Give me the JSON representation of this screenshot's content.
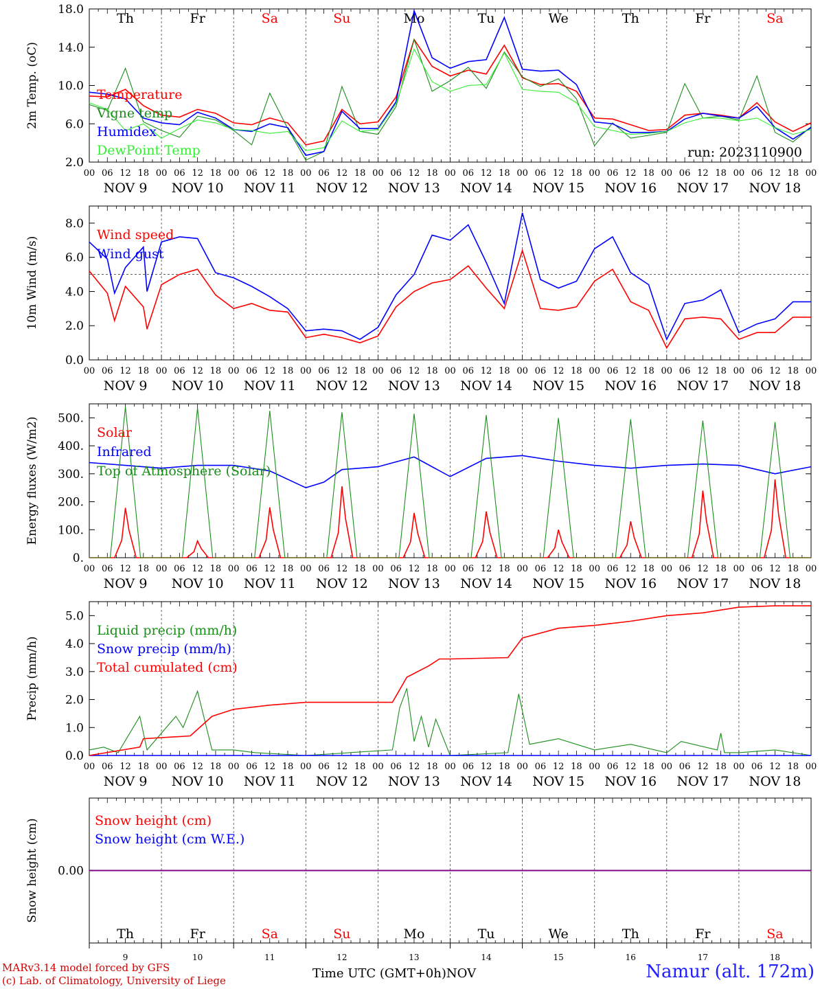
{
  "footer": {
    "model": "MARv3.14 model forced by GFS",
    "lab": "(c) Lab. of Climatology, University of Liege",
    "time_axis": "Time UTC (GMT+0h)",
    "month": "NOV",
    "station": "Namur (alt. 172m)"
  },
  "colors": {
    "red": "#ff0000",
    "green": "#1a8c1a",
    "blue": "#0000ff",
    "lightgreen": "#33ee33",
    "purple": "#800080",
    "weekend": "#ff0000",
    "weekday": "#000000"
  },
  "chart_data": [
    {
      "id": "temperature",
      "type": "line",
      "ylabel": "2m Temp. (oC)",
      "ylim": [
        2,
        18
      ],
      "yticks": [
        2.0,
        6.0,
        10.0,
        14.0,
        18.0
      ],
      "ytick_labels": [
        "2.0",
        "6.0",
        "10.0",
        "14.0",
        "18.0"
      ],
      "x_unit": "days since Nov 9 00 UTC",
      "xlim": [
        0,
        10
      ],
      "weekdays": [
        "Th",
        "Fr",
        "Sa",
        "Su",
        "Mo",
        "Tu",
        "We",
        "Th",
        "Fr",
        "Sa"
      ],
      "weekend_days": [
        "Sa",
        "Su"
      ],
      "hour_ticks": [
        "00",
        "06",
        "12",
        "18"
      ],
      "date_labels": [
        "NOV  9",
        "NOV 10",
        "NOV 11",
        "NOV 12",
        "NOV 13",
        "NOV 14",
        "NOV 15",
        "NOV 16",
        "NOV 17",
        "NOV 18"
      ],
      "annotation": "run: 2023110900",
      "series": [
        {
          "name": "Temperature",
          "color": "red",
          "x": [
            0,
            0.25,
            0.5,
            0.75,
            1,
            1.25,
            1.5,
            1.75,
            2,
            2.25,
            2.5,
            2.75,
            3,
            3.25,
            3.5,
            3.75,
            4,
            4.25,
            4.5,
            4.75,
            5,
            5.25,
            5.5,
            5.75,
            6,
            6.25,
            6.5,
            6.75,
            7,
            7.25,
            7.5,
            7.75,
            8,
            8.25,
            8.5,
            8.75,
            9,
            9.25,
            9.5,
            9.75,
            10
          ],
          "values": [
            8.9,
            8.8,
            9.6,
            7.9,
            6.9,
            6.7,
            7.5,
            7.1,
            6.1,
            5.9,
            6.6,
            6.1,
            3.8,
            4.2,
            7.5,
            6.0,
            6.2,
            8.8,
            14.8,
            12.0,
            11.0,
            11.6,
            11.2,
            14.2,
            10.8,
            10.1,
            10.2,
            9.4,
            6.6,
            6.5,
            5.9,
            5.3,
            5.4,
            6.9,
            7.1,
            6.9,
            6.6,
            8.2,
            6.2,
            5.2,
            6.1
          ]
        },
        {
          "name": "Vigne temp",
          "color": "green",
          "x": [
            0,
            0.25,
            0.5,
            0.75,
            1,
            1.25,
            1.5,
            1.75,
            2,
            2.25,
            2.5,
            2.75,
            3,
            3.25,
            3.5,
            3.75,
            4,
            4.25,
            4.5,
            4.75,
            5,
            5.25,
            5.5,
            5.75,
            6,
            6.25,
            6.5,
            6.75,
            7,
            7.25,
            7.5,
            7.75,
            8,
            8.25,
            8.5,
            8.75,
            9,
            9.25,
            9.5,
            9.75,
            10
          ],
          "values": [
            8.0,
            7.4,
            11.8,
            6.2,
            5.3,
            4.6,
            6.8,
            6.4,
            5.3,
            3.8,
            9.2,
            5.5,
            2.2,
            3.1,
            9.9,
            5.2,
            4.9,
            7.8,
            14.8,
            9.4,
            10.5,
            11.9,
            9.7,
            13.5,
            10.9,
            9.9,
            10.7,
            8.6,
            3.7,
            6.1,
            4.5,
            4.8,
            5.1,
            10.2,
            6.6,
            6.8,
            6.4,
            11.0,
            5.1,
            4.1,
            5.7
          ]
        },
        {
          "name": "Humidex",
          "color": "blue",
          "x": [
            0,
            0.25,
            0.5,
            0.75,
            1,
            1.25,
            1.5,
            1.75,
            2,
            2.25,
            2.5,
            2.75,
            3,
            3.25,
            3.5,
            3.75,
            4,
            4.25,
            4.5,
            4.75,
            5,
            5.25,
            5.5,
            5.75,
            6,
            6.25,
            6.5,
            6.75,
            7,
            7.25,
            7.5,
            7.75,
            8,
            8.25,
            8.5,
            8.75,
            9,
            9.25,
            9.5,
            9.75,
            10
          ],
          "values": [
            9.3,
            9.1,
            8.6,
            6.6,
            6.1,
            5.9,
            7.2,
            6.6,
            5.4,
            5.2,
            6.0,
            5.6,
            2.7,
            3.1,
            7.3,
            5.5,
            5.5,
            8.3,
            17.8,
            12.9,
            11.8,
            12.5,
            12.7,
            17.1,
            11.7,
            11.5,
            11.6,
            10.1,
            6.2,
            6.0,
            5.1,
            5.1,
            5.2,
            6.5,
            7.1,
            6.8,
            6.6,
            7.8,
            5.6,
            4.4,
            5.6
          ]
        },
        {
          "name": "DewPoint Temp",
          "color": "lightgreen",
          "x": [
            0,
            0.25,
            0.5,
            0.75,
            1,
            1.25,
            1.5,
            1.75,
            2,
            2.25,
            2.5,
            2.75,
            3,
            3.25,
            3.5,
            3.75,
            4,
            4.25,
            4.5,
            4.75,
            5,
            5.25,
            5.5,
            5.75,
            6,
            6.25,
            6.5,
            6.75,
            7,
            7.25,
            7.5,
            7.75,
            8,
            8.25,
            8.5,
            8.75,
            9,
            9.25,
            9.5,
            9.75,
            10
          ],
          "values": [
            8.2,
            7.5,
            5.3,
            6.0,
            4.5,
            5.5,
            6.4,
            6.1,
            5.4,
            5.3,
            5.0,
            5.2,
            3.2,
            3.5,
            6.3,
            5.2,
            5.4,
            8.1,
            13.8,
            10.4,
            9.4,
            10.0,
            10.1,
            13.4,
            9.6,
            9.4,
            9.3,
            8.2,
            5.7,
            5.3,
            4.9,
            5.0,
            5.2,
            6.1,
            6.6,
            6.6,
            6.3,
            6.6,
            5.6,
            4.9,
            5.4
          ]
        }
      ]
    },
    {
      "id": "wind",
      "type": "line",
      "ylabel": "10m Wind (m/s)",
      "ylim": [
        0,
        9
      ],
      "yticks": [
        0,
        2,
        4,
        6,
        8
      ],
      "ytick_labels": [
        "0.0",
        "2.0",
        "4.0",
        "6.0",
        "8.0"
      ],
      "reference_line": 5,
      "xlim": [
        0,
        10
      ],
      "date_labels": [
        "NOV  9",
        "NOV 10",
        "NOV 11",
        "NOV 12",
        "NOV 13",
        "NOV 14",
        "NOV 15",
        "NOV 16",
        "NOV 17",
        "NOV 18"
      ],
      "hour_ticks": [
        "00",
        "06",
        "12",
        "18"
      ],
      "series": [
        {
          "name": "Wind speed",
          "color": "red",
          "x": [
            0,
            0.25,
            0.35,
            0.5,
            0.75,
            0.8,
            1,
            1.25,
            1.5,
            1.75,
            2,
            2.25,
            2.5,
            2.75,
            3,
            3.25,
            3.5,
            3.75,
            4,
            4.25,
            4.5,
            4.75,
            5,
            5.25,
            5.5,
            5.75,
            6,
            6.25,
            6.5,
            6.75,
            7,
            7.25,
            7.5,
            7.75,
            8,
            8.25,
            8.5,
            8.75,
            9,
            9.25,
            9.5,
            9.75,
            10
          ],
          "values": [
            5.2,
            3.9,
            2.3,
            4.3,
            3.1,
            1.8,
            4.4,
            5.0,
            5.3,
            3.8,
            3.0,
            3.3,
            2.9,
            2.8,
            1.3,
            1.5,
            1.3,
            1.0,
            1.4,
            3.1,
            4.0,
            4.5,
            4.7,
            5.5,
            4.2,
            3.0,
            6.4,
            3.0,
            2.9,
            3.1,
            4.6,
            5.3,
            3.4,
            2.9,
            0.7,
            2.4,
            2.5,
            2.4,
            1.2,
            1.6,
            1.6,
            2.5,
            2.5
          ]
        },
        {
          "name": "Wind gust",
          "color": "blue",
          "x": [
            0,
            0.25,
            0.35,
            0.5,
            0.75,
            0.8,
            1,
            1.25,
            1.5,
            1.75,
            2,
            2.25,
            2.5,
            2.75,
            3,
            3.25,
            3.5,
            3.75,
            4,
            4.25,
            4.5,
            4.75,
            5,
            5.25,
            5.5,
            5.75,
            6,
            6.25,
            6.5,
            6.75,
            7,
            7.25,
            7.5,
            7.75,
            8,
            8.25,
            8.5,
            8.75,
            9,
            9.25,
            9.5,
            9.75,
            10
          ],
          "values": [
            6.9,
            5.9,
            3.9,
            5.4,
            6.6,
            4.0,
            6.9,
            7.2,
            7.1,
            5.1,
            4.8,
            4.3,
            3.7,
            3.0,
            1.7,
            1.8,
            1.7,
            1.2,
            1.9,
            3.8,
            5.0,
            7.3,
            7.0,
            7.9,
            5.7,
            3.3,
            8.6,
            4.7,
            4.2,
            4.6,
            6.5,
            7.2,
            5.1,
            4.4,
            1.2,
            3.3,
            3.5,
            4.1,
            1.6,
            2.1,
            2.4,
            3.4,
            3.4
          ]
        }
      ]
    },
    {
      "id": "energy",
      "type": "line",
      "ylabel": "Energy fluxes (W/m2)",
      "ylim": [
        0,
        550
      ],
      "yticks": [
        0,
        100,
        200,
        300,
        400,
        500
      ],
      "ytick_labels": [
        "0.",
        "100.",
        "200.",
        "300.",
        "400.",
        "500."
      ],
      "xlim": [
        0,
        10
      ],
      "date_labels": [
        "NOV  9",
        "NOV 10",
        "NOV 11",
        "NOV 12",
        "NOV 13",
        "NOV 14",
        "NOV 15",
        "NOV 16",
        "NOV 17",
        "NOV 18"
      ],
      "hour_ticks": [
        "00",
        "06",
        "12",
        "18"
      ],
      "series": [
        {
          "name": "Solar",
          "color": "red",
          "daily_peaks": [
            178,
            60,
            180,
            255,
            160,
            165,
            100,
            130,
            240,
            280
          ],
          "peak_day_fraction": 0.5
        },
        {
          "name": "Infrared",
          "color": "blue",
          "x": [
            0,
            0.5,
            1,
            1.5,
            2,
            2.5,
            3,
            3.25,
            3.5,
            4,
            4.5,
            5,
            5.5,
            6,
            6.5,
            7,
            7.5,
            8,
            8.5,
            9,
            9.5,
            10
          ],
          "values": [
            340,
            330,
            320,
            330,
            330,
            310,
            250,
            270,
            315,
            325,
            360,
            290,
            355,
            365,
            345,
            330,
            320,
            330,
            335,
            330,
            300,
            325
          ]
        },
        {
          "name": "Top of Atmosphere (Solar)",
          "color": "green",
          "daily_peaks": [
            540,
            535,
            525,
            520,
            515,
            510,
            500,
            495,
            490,
            485
          ],
          "rise_fraction": 0.29,
          "set_fraction": 0.71
        }
      ]
    },
    {
      "id": "precip",
      "type": "line",
      "ylabel": "Precip (mm/h)",
      "ylim": [
        0,
        5.5
      ],
      "yticks": [
        0,
        1,
        2,
        3,
        4,
        5
      ],
      "ytick_labels": [
        "0.0",
        "1.0",
        "2.0",
        "3.0",
        "4.0",
        "5.0"
      ],
      "xlim": [
        0,
        10
      ],
      "date_labels": [
        "NOV  9",
        "NOV 10",
        "NOV 11",
        "NOV 12",
        "NOV 13",
        "NOV 14",
        "NOV 15",
        "NOV 16",
        "NOV 17",
        "NOV 18"
      ],
      "hour_ticks": [
        "00",
        "06",
        "12",
        "18"
      ],
      "series": [
        {
          "name": "Liquid precip (mm/h)",
          "color": "green",
          "x": [
            0,
            0.2,
            0.4,
            0.7,
            0.75,
            0.8,
            1.2,
            1.3,
            1.5,
            1.7,
            2.0,
            2.3,
            3.0,
            4.2,
            4.3,
            4.4,
            4.5,
            4.6,
            4.7,
            4.8,
            5.0,
            5.8,
            5.95,
            6.1,
            6.5,
            7.0,
            7.5,
            8.0,
            8.2,
            8.7,
            8.75,
            8.8,
            9.0,
            9.5,
            10
          ],
          "values": [
            0.2,
            0.3,
            0.1,
            1.4,
            0.8,
            0.2,
            1.4,
            1.0,
            2.3,
            0.2,
            0.2,
            0.1,
            0.0,
            0.2,
            1.7,
            2.4,
            0.5,
            1.4,
            0.3,
            1.3,
            0.0,
            0.1,
            2.2,
            0.4,
            0.6,
            0.2,
            0.4,
            0.1,
            0.5,
            0.2,
            0.8,
            0.1,
            0.1,
            0.2,
            0.0
          ]
        },
        {
          "name": "Snow precip (mm/h)",
          "color": "blue",
          "x": [
            0,
            10
          ],
          "values": [
            0,
            0
          ]
        },
        {
          "name": "Total cumulated (cm)",
          "color": "red",
          "x": [
            0,
            0.7,
            0.75,
            1.4,
            1.7,
            2.0,
            2.5,
            3.0,
            4.2,
            4.4,
            4.7,
            4.85,
            5.0,
            5.8,
            6.0,
            6.5,
            7.0,
            7.5,
            8.0,
            8.5,
            9.0,
            9.5,
            10
          ],
          "values": [
            0.0,
            0.3,
            0.6,
            0.7,
            1.4,
            1.65,
            1.8,
            1.9,
            1.9,
            2.8,
            3.2,
            3.45,
            3.45,
            3.5,
            4.2,
            4.55,
            4.65,
            4.8,
            5.0,
            5.1,
            5.3,
            5.35,
            5.35
          ]
        }
      ]
    },
    {
      "id": "snow",
      "type": "line",
      "ylabel": "Snow height (cm)",
      "ylim": [
        -1,
        1
      ],
      "yticks": [
        0
      ],
      "ytick_labels": [
        "0.00"
      ],
      "xlim": [
        0,
        10
      ],
      "weekdays": [
        "Th",
        "Fr",
        "Sa",
        "Su",
        "Mo",
        "Tu",
        "We",
        "Th",
        "Fr",
        "Sa"
      ],
      "weekend_days": [
        "Sa",
        "Su"
      ],
      "day_numbers": [
        "9",
        "10",
        "11",
        "12",
        "13",
        "14",
        "15",
        "16",
        "17",
        "18"
      ],
      "series": [
        {
          "name": "Snow height (cm)",
          "color": "red",
          "x": [
            0,
            10
          ],
          "values": [
            0,
            0
          ]
        },
        {
          "name": "Snow height (cm W.E.)",
          "color": "blue",
          "x": [
            0,
            10
          ],
          "values": [
            0,
            0
          ]
        }
      ]
    }
  ]
}
